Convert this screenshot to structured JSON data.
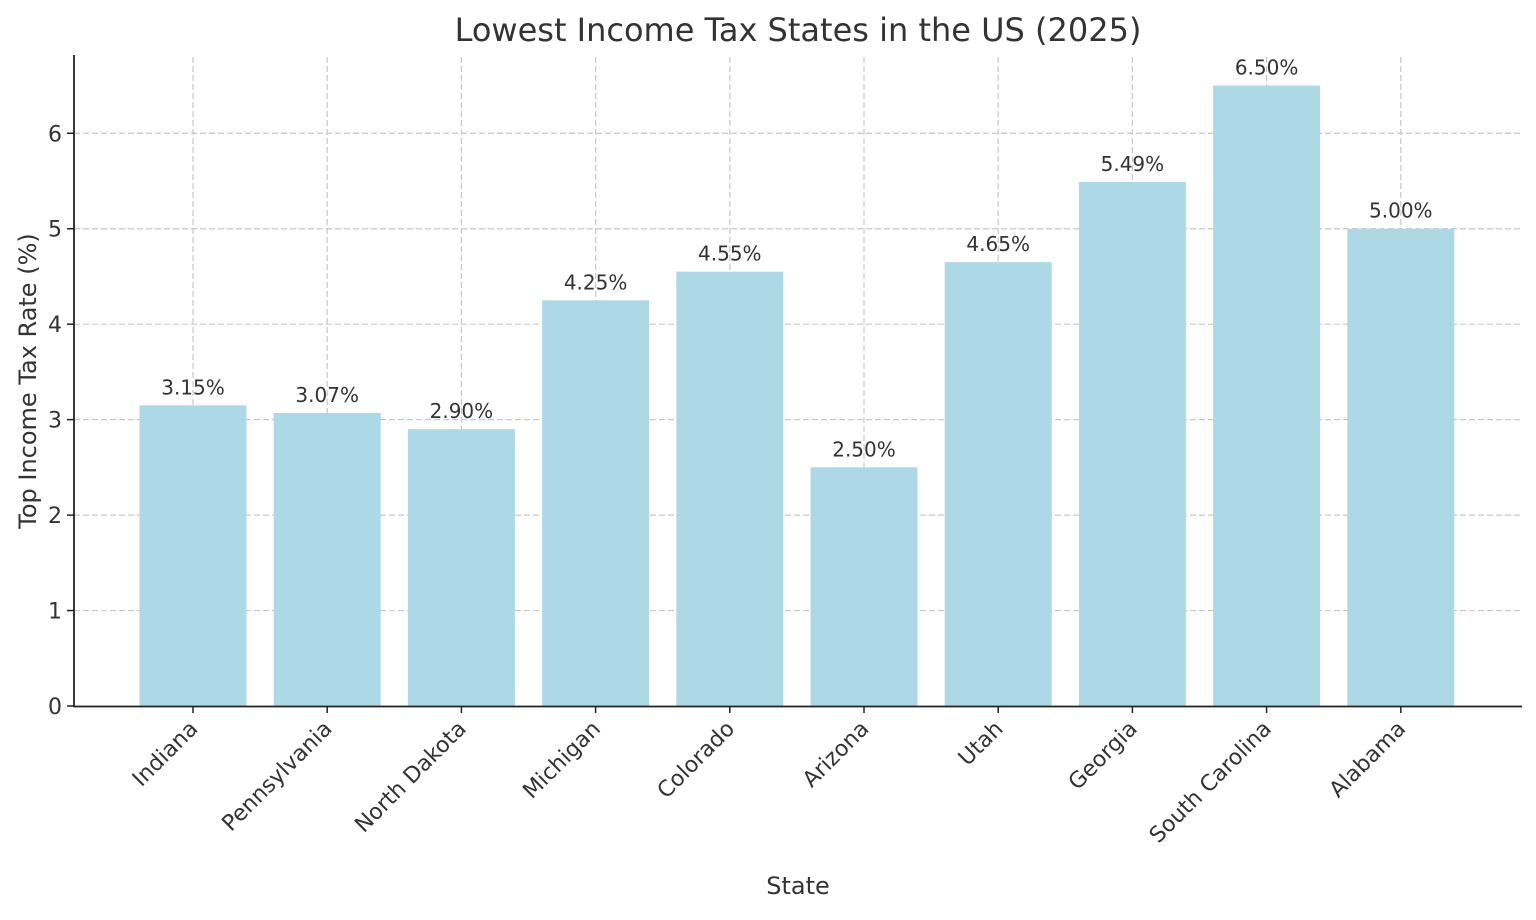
{
  "chart_data": {
    "type": "bar",
    "title": "Lowest Income Tax States in the US (2025)",
    "xlabel": "State",
    "ylabel": "Top Income Tax Rate (%)",
    "categories": [
      "Indiana",
      "Pennsylvania",
      "North Dakota",
      "Michigan",
      "Colorado",
      "Arizona",
      "Utah",
      "Georgia",
      "South Carolina",
      "Alabama"
    ],
    "values": [
      3.15,
      3.07,
      2.9,
      4.25,
      4.55,
      2.5,
      4.65,
      5.49,
      6.5,
      5.0
    ],
    "data_labels": [
      "3.15%",
      "3.07%",
      "2.90%",
      "4.25%",
      "4.55%",
      "2.50%",
      "4.65%",
      "5.49%",
      "6.50%",
      "5.00%"
    ],
    "yticks": [
      "0",
      "1",
      "2",
      "3",
      "4",
      "5",
      "6"
    ],
    "ylim": [
      0,
      6.82
    ],
    "grid": true,
    "bar_color": "#add8e6",
    "text_color": "#333333"
  }
}
